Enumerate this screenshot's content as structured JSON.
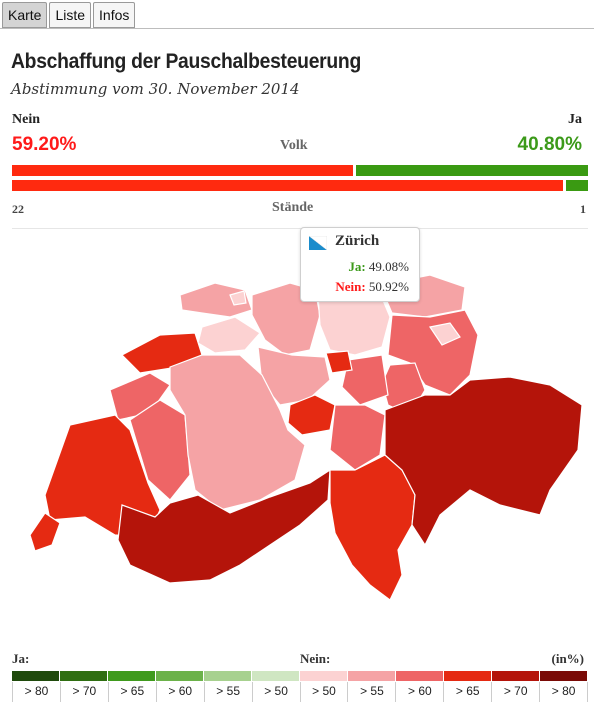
{
  "tabs": [
    {
      "label": "Karte",
      "active": true
    },
    {
      "label": "Liste",
      "active": false
    },
    {
      "label": "Infos",
      "active": false
    }
  ],
  "title": "Abschaffung der Pauschalbesteuerung",
  "subtitle": "Abstimmung vom 30. November 2014",
  "results": {
    "nein_label": "Nein",
    "ja_label": "Ja",
    "nein_pct": "59.20%",
    "ja_pct": "40.80%",
    "nein_value": 59.2,
    "ja_value": 40.8,
    "volk_label": "Volk",
    "staende_label": "Stände",
    "staende_nein": "22",
    "staende_ja": "1",
    "staende_nein_value": 22,
    "staende_ja_value": 1
  },
  "tooltip": {
    "canton": "Zürich",
    "ja_label": "Ja:",
    "ja_value": "49.08%",
    "nein_label": "Nein:",
    "nein_value": "50.92%",
    "icon": "canton-flag-icon"
  },
  "legend": {
    "ja_label": "Ja:",
    "nein_label": "Nein:",
    "unit": "(in%)",
    "bins": [
      {
        "label": "> 80",
        "color": "#1f4a0c"
      },
      {
        "label": "> 70",
        "color": "#2f6e12"
      },
      {
        "label": "> 65",
        "color": "#3f9a1d"
      },
      {
        "label": "> 60",
        "color": "#6cb24a"
      },
      {
        "label": "> 55",
        "color": "#a7d18f"
      },
      {
        "label": "> 50",
        "color": "#cfe6c2"
      },
      {
        "label": "> 50",
        "color": "#fcd2d2"
      },
      {
        "label": "> 55",
        "color": "#f5a3a5"
      },
      {
        "label": "> 60",
        "color": "#ee6566"
      },
      {
        "label": "> 65",
        "color": "#e52a12"
      },
      {
        "label": "> 70",
        "color": "#b4140a"
      },
      {
        "label": "> 80",
        "color": "#7a0a06"
      }
    ]
  },
  "colors": {
    "nein": "#ff2a0f",
    "ja": "#3a9a12"
  }
}
